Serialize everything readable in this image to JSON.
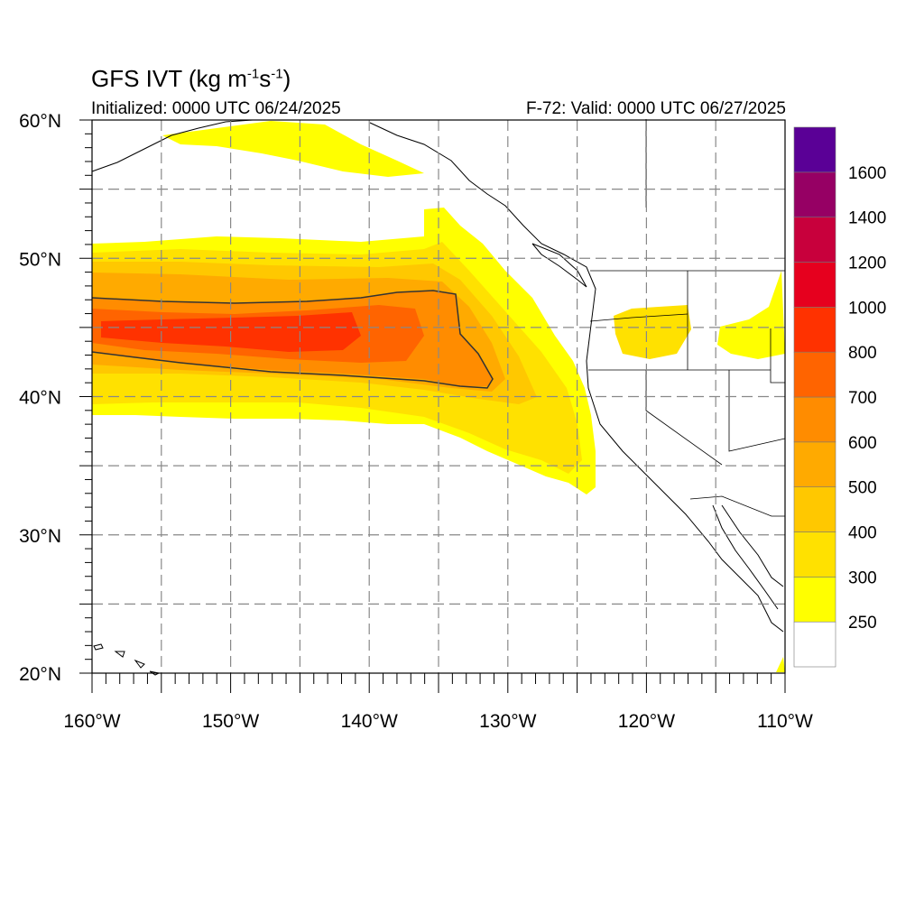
{
  "header": {
    "title_main": "GFS IVT (kg m",
    "title_exp1": "-1",
    "title_mid": "s",
    "title_exp2": "-1",
    "title_end": ")",
    "initialized": "Initialized: 0000 UTC 06/24/2025",
    "valid": "F-72: Valid: 0000 UTC 06/27/2025"
  },
  "map": {
    "lon_range": [
      -160,
      -110
    ],
    "lat_range": [
      20,
      60
    ],
    "lat_ticks": [
      {
        "lat": 60,
        "label": "60°N"
      },
      {
        "lat": 50,
        "label": "50°N"
      },
      {
        "lat": 40,
        "label": "40°N"
      },
      {
        "lat": 30,
        "label": "30°N"
      },
      {
        "lat": 20,
        "label": "20°N"
      }
    ],
    "lon_ticks": [
      {
        "lon": -160,
        "label": "160°W"
      },
      {
        "lon": -150,
        "label": "150°W"
      },
      {
        "lon": -140,
        "label": "140°W"
      },
      {
        "lon": -130,
        "label": "130°W"
      },
      {
        "lon": -120,
        "label": "120°W"
      },
      {
        "lon": -110,
        "label": "110°W"
      }
    ],
    "grid": "dashed, every 5 degrees"
  },
  "colorbar": {
    "levels": [
      250,
      300,
      400,
      500,
      600,
      700,
      800,
      1000,
      1200,
      1400,
      1600
    ],
    "labels": [
      "250",
      "300",
      "400",
      "500",
      "600",
      "700",
      "800",
      "1000",
      "1200",
      "1400",
      "1600"
    ],
    "colors": [
      "#ffffff",
      "#ffff00",
      "#ffe100",
      "#ffc800",
      "#ffaa00",
      "#ff8c00",
      "#ff6400",
      "#ff3200",
      "#e6001e",
      "#c8003c",
      "#960064",
      "#5a0096"
    ]
  }
}
